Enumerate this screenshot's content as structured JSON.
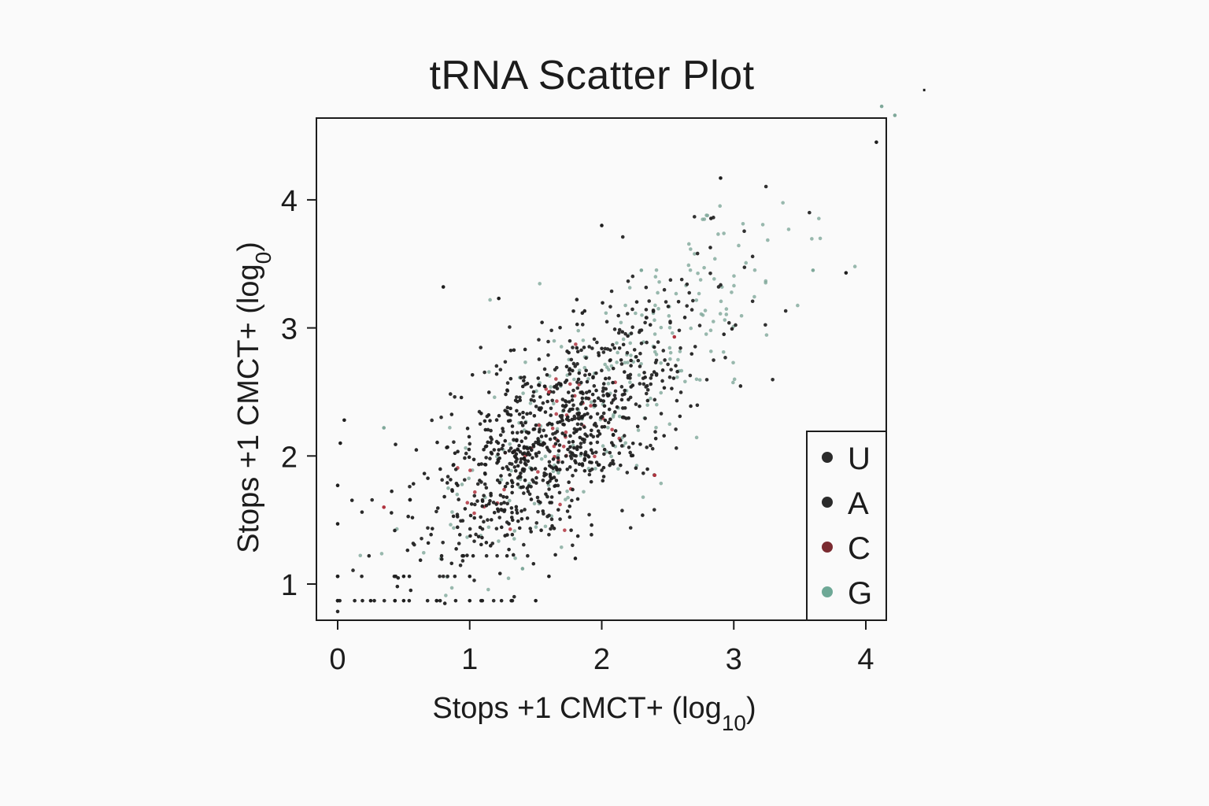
{
  "chart_data": {
    "type": "scatter",
    "title": "tRNA Scatter Plot",
    "xlabel": "Stops +1 CMCT+ (log10)",
    "xlabel_main": "Stops +1 CMCT+ (log",
    "xlabel_sub": "10",
    "ylabel": "Stops +1 CMCT+ (log0)",
    "ylabel_main": "Stops +1 CMCT+ (log",
    "ylabel_sub": "0",
    "xlim": [
      -0.16,
      4.15
    ],
    "ylim": [
      0.72,
      4.63
    ],
    "xticks": [
      0,
      1,
      2,
      3,
      4
    ],
    "yticks": [
      1,
      2,
      3,
      4
    ],
    "grid": false,
    "legend_position": "lower right",
    "legend": [
      {
        "label": "U",
        "color": "#2b2b2b"
      },
      {
        "label": "A",
        "color": "#2b2b2b"
      },
      {
        "label": "C",
        "color": "#7a2a30"
      },
      {
        "label": "G",
        "color": "#6ea896"
      }
    ],
    "series": [
      {
        "name": "U",
        "color": "#1e1e1e",
        "count": 520,
        "center": [
          1.55,
          2.05
        ],
        "spread_major": 0.62,
        "spread_minor": 0.3
      },
      {
        "name": "A",
        "color": "#262626",
        "count": 430,
        "center": [
          1.75,
          2.25
        ],
        "spread_major": 0.75,
        "spread_minor": 0.32
      },
      {
        "name": "C",
        "color": "#b0323e",
        "count": 45,
        "center": [
          1.55,
          2.1
        ],
        "spread_major": 0.35,
        "spread_minor": 0.18
      },
      {
        "name": "G",
        "color": "#7fa89a",
        "count": 260,
        "center": [
          2.1,
          2.55
        ],
        "spread_major": 0.95,
        "spread_minor": 0.3
      }
    ],
    "sample_points": [
      {
        "series": "U",
        "x": 0.0,
        "y": 0.87
      },
      {
        "series": "U",
        "x": 0.25,
        "y": 0.87
      },
      {
        "series": "U",
        "x": 0.5,
        "y": 0.87
      },
      {
        "series": "U",
        "x": 0.75,
        "y": 0.87
      },
      {
        "series": "U",
        "x": 1.0,
        "y": 0.87
      },
      {
        "series": "U",
        "x": 1.5,
        "y": 0.87
      },
      {
        "series": "U",
        "x": 0.0,
        "y": 1.06
      },
      {
        "series": "U",
        "x": 0.5,
        "y": 1.06
      },
      {
        "series": "U",
        "x": 1.0,
        "y": 1.06
      },
      {
        "series": "U",
        "x": 1.6,
        "y": 1.06
      },
      {
        "series": "U",
        "x": 0.0,
        "y": 1.47
      },
      {
        "series": "U",
        "x": 0.0,
        "y": 1.77
      },
      {
        "series": "U",
        "x": 0.02,
        "y": 2.1
      },
      {
        "series": "U",
        "x": 0.05,
        "y": 2.28
      },
      {
        "series": "U",
        "x": 0.8,
        "y": 3.32
      },
      {
        "series": "U",
        "x": 1.22,
        "y": 3.23
      },
      {
        "series": "U",
        "x": 2.0,
        "y": 3.8
      },
      {
        "series": "U",
        "x": 2.9,
        "y": 4.17
      },
      {
        "series": "U",
        "x": 4.08,
        "y": 4.45
      },
      {
        "series": "U",
        "x": 3.85,
        "y": 3.43
      },
      {
        "series": "U",
        "x": 2.4,
        "y": 1.85
      },
      {
        "series": "U",
        "x": 1.8,
        "y": 1.2
      },
      {
        "series": "C",
        "x": 2.4,
        "y": 1.85
      },
      {
        "series": "C",
        "x": 0.35,
        "y": 1.6
      },
      {
        "series": "C",
        "x": 1.6,
        "y": 2.5
      },
      {
        "series": "C",
        "x": 2.55,
        "y": 2.93
      },
      {
        "series": "G",
        "x": 0.35,
        "y": 2.22
      },
      {
        "series": "G",
        "x": 4.22,
        "y": 4.66
      },
      {
        "series": "G",
        "x": 4.12,
        "y": 4.73
      },
      {
        "series": "G",
        "x": 3.6,
        "y": 3.45
      },
      {
        "series": "G",
        "x": 2.3,
        "y": 3.45
      },
      {
        "series": "G",
        "x": 1.4,
        "y": 1.12
      }
    ]
  },
  "stray_mark": "."
}
